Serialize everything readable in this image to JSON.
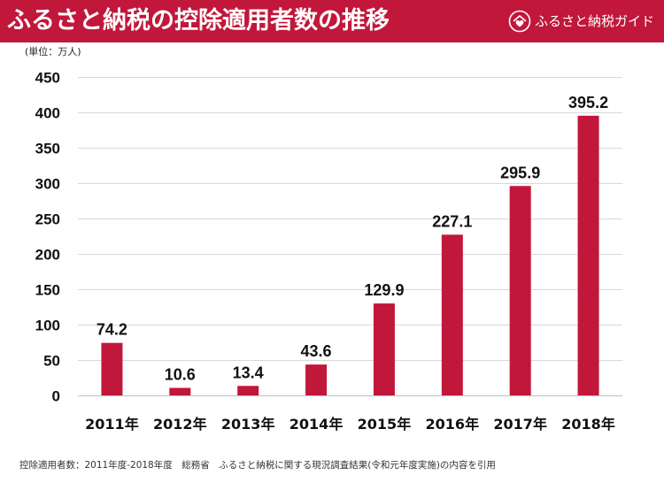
{
  "header": {
    "logo_text": "ふるさと納税ガイド",
    "logo_icon": "furusato-logo-icon"
  },
  "colors": {
    "brand": "#C1173A",
    "bar": "#C1173A",
    "header_text": "#ffffff"
  },
  "chart_data": {
    "type": "bar",
    "title": "ふるさと納税の控除適用者数の推移",
    "ylabel": "(単位：万人)",
    "xlabel": "",
    "categories": [
      "2011年",
      "2012年",
      "2013年",
      "2014年",
      "2015年",
      "2016年",
      "2017年",
      "2018年"
    ],
    "values": [
      74.2,
      10.6,
      13.4,
      43.6,
      129.9,
      227.1,
      295.9,
      395.2
    ],
    "yticks": [
      0,
      50,
      100,
      150,
      200,
      250,
      300,
      350,
      400,
      450
    ],
    "ylim": [
      0,
      450
    ],
    "grid": true,
    "legend": "none",
    "data_labels": true
  },
  "footer": {
    "source": "控除適用者数：2011年度-2018年度　総務省　ふるさと納税に関する現況調査結果(令和元年度実施)の内容を引用"
  }
}
